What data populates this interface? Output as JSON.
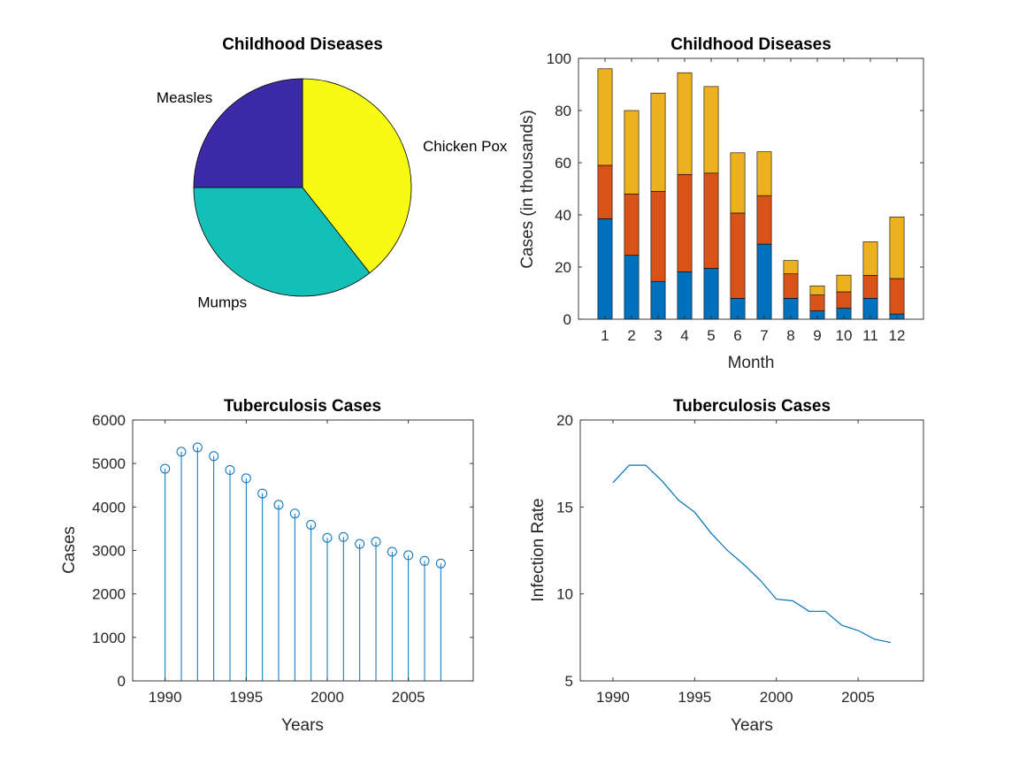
{
  "colors": {
    "bar_series": [
      "#0072BD",
      "#D95319",
      "#EDB120"
    ],
    "pie_series": [
      "#F7FA12",
      "#14BFB8",
      "#3D2AA6"
    ],
    "stem": "#0072BD",
    "line": "#0072BD",
    "axis": "#262626"
  },
  "chart_data": [
    {
      "type": "pie",
      "title": "Childhood Diseases",
      "labels": [
        "Chicken Pox",
        "Mumps",
        "Measles"
      ],
      "values": [
        39.4,
        35.6,
        25.0
      ]
    },
    {
      "type": "bar",
      "stacked": true,
      "title": "Childhood Diseases",
      "xlabel": "Month",
      "ylabel": "Cases (in thousands)",
      "categories": [
        "1",
        "2",
        "3",
        "4",
        "5",
        "6",
        "7",
        "8",
        "9",
        "10",
        "11",
        "12"
      ],
      "ylim": [
        0,
        100
      ],
      "yticks": [
        0,
        20,
        40,
        60,
        80,
        100
      ],
      "series": [
        {
          "values": [
            38.5,
            24.5,
            14.5,
            18.2,
            19.5,
            8.0,
            28.8,
            8.0,
            3.2,
            4.2,
            8.0,
            2.0
          ]
        },
        {
          "values": [
            20.5,
            23.5,
            34.5,
            37.3,
            36.5,
            32.7,
            18.6,
            9.4,
            6.1,
            6.3,
            8.8,
            13.6
          ]
        },
        {
          "values": [
            37.0,
            32.0,
            37.7,
            39.0,
            33.2,
            23.1,
            16.8,
            5.1,
            3.5,
            6.4,
            12.9,
            23.6
          ]
        }
      ],
      "grid": false
    },
    {
      "type": "stem",
      "title": "Tuberculosis Cases",
      "xlabel": "Years",
      "ylabel": "Cases",
      "xlim": [
        1988,
        2009
      ],
      "xticks": [
        1990,
        1995,
        2000,
        2005
      ],
      "ylim": [
        0,
        6000
      ],
      "yticks": [
        0,
        1000,
        2000,
        3000,
        4000,
        5000,
        6000
      ],
      "x": [
        1990,
        1991,
        1992,
        1993,
        1994,
        1995,
        1996,
        1997,
        1998,
        1999,
        2000,
        2001,
        2002,
        2003,
        2004,
        2005,
        2006,
        2007
      ],
      "y": [
        4880,
        5270,
        5370,
        5170,
        4850,
        4660,
        4310,
        4050,
        3850,
        3590,
        3290,
        3310,
        3150,
        3200,
        2970,
        2890,
        2760,
        2700
      ],
      "grid": false
    },
    {
      "type": "line",
      "title": "Tuberculosis Cases",
      "xlabel": "Years",
      "ylabel": "Infection Rate",
      "xlim": [
        1988,
        2009
      ],
      "xticks": [
        1990,
        1995,
        2000,
        2005
      ],
      "ylim": [
        5,
        20
      ],
      "yticks": [
        5,
        10,
        15,
        20
      ],
      "x": [
        1990,
        1991,
        1992,
        1993,
        1994,
        1995,
        1996,
        1997,
        1998,
        1999,
        2000,
        2001,
        2002,
        2003,
        2004,
        2005,
        2006,
        2007
      ],
      "y": [
        16.4,
        17.4,
        17.4,
        16.5,
        15.4,
        14.7,
        13.5,
        12.5,
        11.7,
        10.8,
        9.7,
        9.6,
        9.0,
        9.0,
        8.2,
        7.9,
        7.4,
        7.2
      ],
      "grid": false
    }
  ]
}
